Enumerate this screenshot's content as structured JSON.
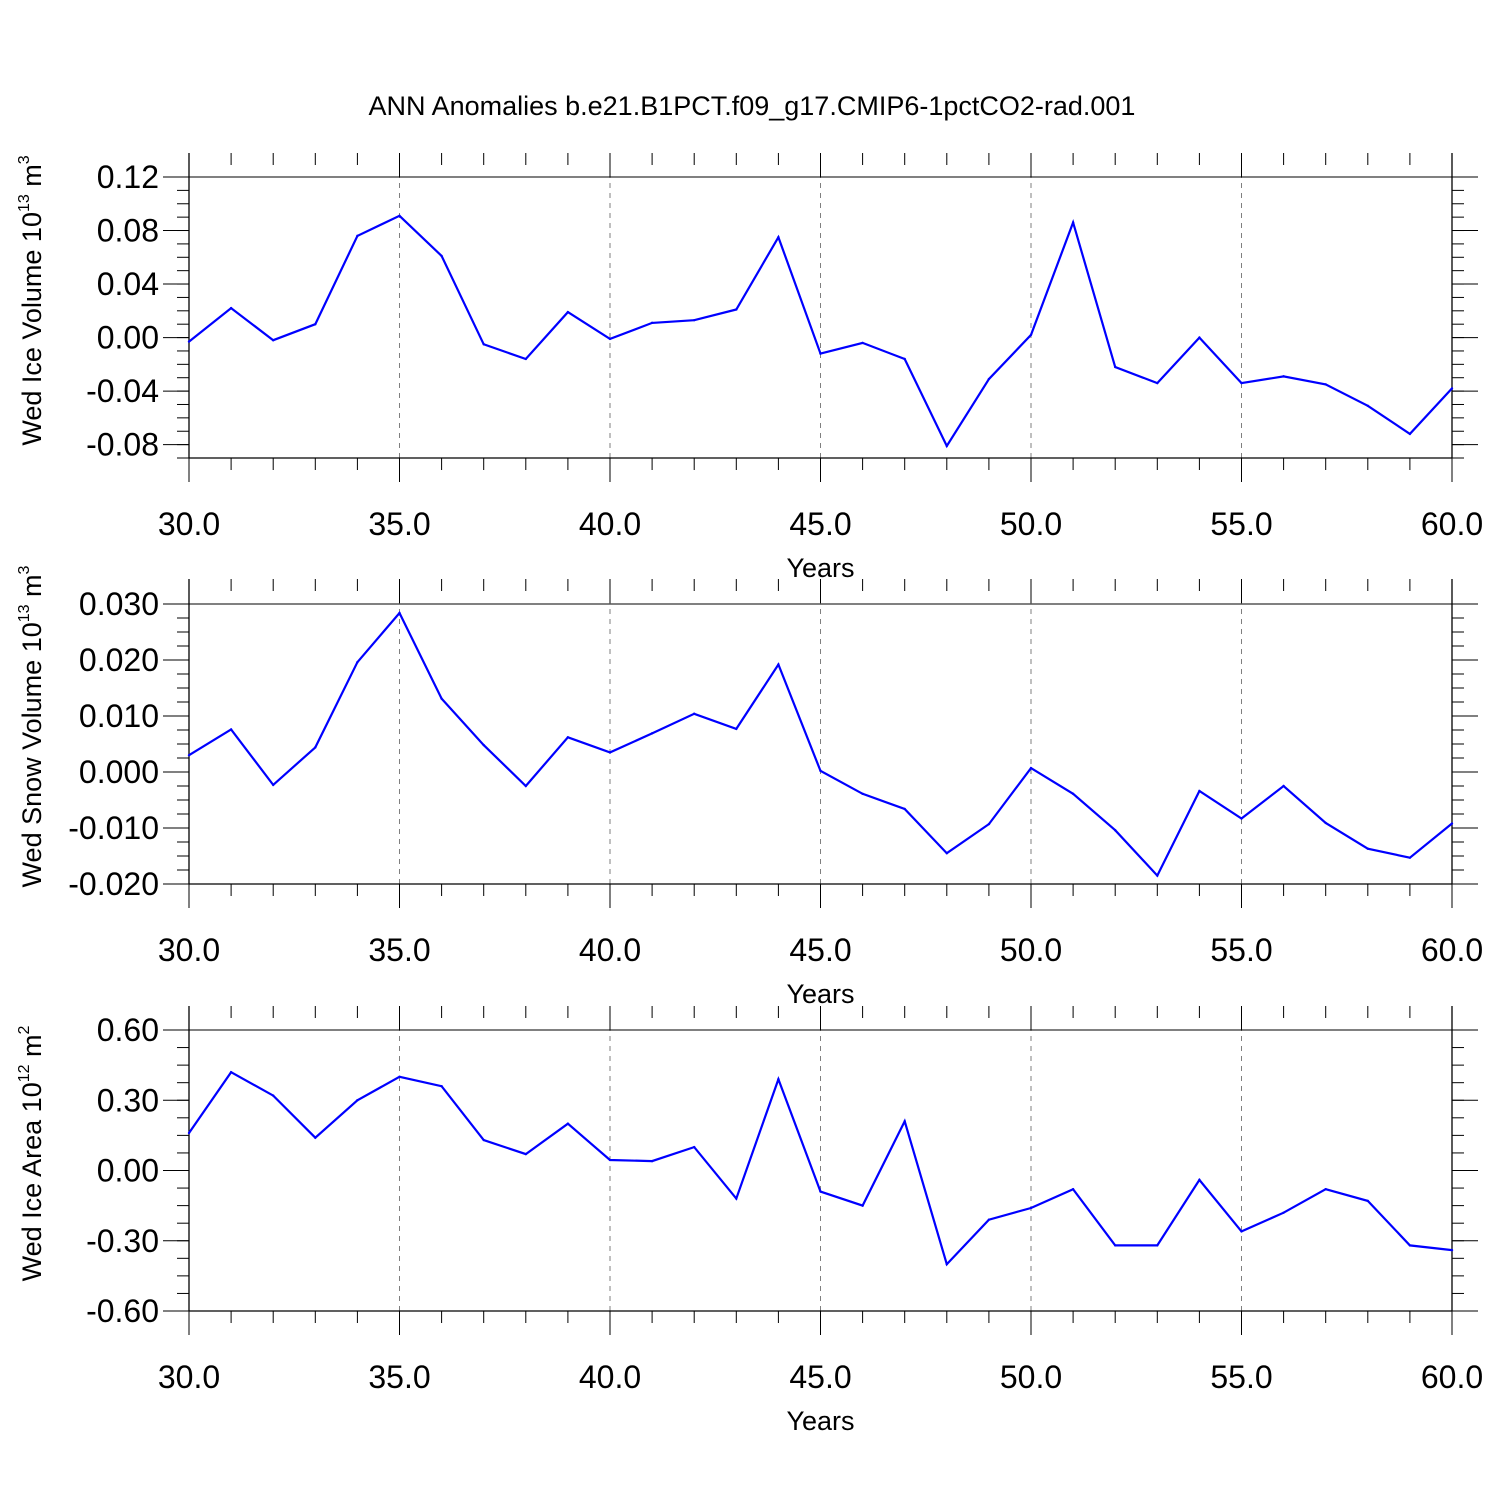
{
  "figure": {
    "title": "ANN Anomalies b.e21.B1PCT.f09_g17.CMIP6-1pctCO2-rad.001"
  },
  "colors": {
    "series": "#0000ff",
    "axes": "#000000",
    "grid": "#7f7f7f"
  },
  "chart_data": [
    {
      "type": "line",
      "ylabel": "Wed Ice Volume 10",
      "ylabel_exp": "13",
      "ylabel_unit": " m",
      "ylabel_unit_exp": "3",
      "xlabel": "Years",
      "xlim": [
        30,
        60
      ],
      "ylim": [
        -0.09,
        0.12
      ],
      "xticks": [
        30,
        35,
        40,
        45,
        50,
        55,
        60
      ],
      "xtick_labels": [
        "30.0",
        "35.0",
        "40.0",
        "45.0",
        "50.0",
        "55.0",
        "60.0"
      ],
      "yticks": [
        0.12,
        0.08,
        0.04,
        0.0,
        -0.04,
        -0.08
      ],
      "ytick_labels": [
        "0.12",
        "0.08",
        "0.04",
        "0.00",
        "-0.04",
        "-0.08"
      ],
      "x_grid": true,
      "x": [
        30,
        31,
        32,
        33,
        34,
        35,
        36,
        37,
        38,
        39,
        40,
        41,
        42,
        43,
        44,
        45,
        46,
        47,
        48,
        49,
        50,
        51,
        52,
        53,
        54,
        55,
        56,
        57,
        58,
        59,
        60
      ],
      "series": [
        {
          "values": [
            -0.003,
            0.022,
            -0.002,
            0.01,
            0.076,
            0.091,
            0.061,
            -0.005,
            -0.016,
            0.019,
            -0.001,
            0.011,
            0.013,
            0.021,
            0.075,
            -0.012,
            -0.004,
            -0.016,
            -0.081,
            -0.031,
            0.002,
            0.086,
            -0.022,
            -0.034,
            0.0,
            -0.034,
            -0.029,
            -0.035,
            -0.051,
            -0.072,
            -0.038
          ]
        }
      ]
    },
    {
      "type": "line",
      "ylabel": "Wed Snow Volume 10",
      "ylabel_exp": "13",
      "ylabel_unit": " m",
      "ylabel_unit_exp": "3",
      "xlabel": "Years",
      "xlim": [
        30,
        60
      ],
      "ylim": [
        -0.02,
        0.03
      ],
      "xticks": [
        30,
        35,
        40,
        45,
        50,
        55,
        60
      ],
      "xtick_labels": [
        "30.0",
        "35.0",
        "40.0",
        "45.0",
        "50.0",
        "55.0",
        "60.0"
      ],
      "yticks": [
        0.03,
        0.02,
        0.01,
        0.0,
        -0.01,
        -0.02
      ],
      "ytick_labels": [
        "0.030",
        "0.020",
        "0.010",
        "0.000",
        "-0.010",
        "-0.020"
      ],
      "x_grid": true,
      "x": [
        30,
        31,
        32,
        33,
        34,
        35,
        36,
        37,
        38,
        39,
        40,
        41,
        42,
        43,
        44,
        45,
        46,
        47,
        48,
        49,
        50,
        51,
        52,
        53,
        54,
        55,
        56,
        57,
        58,
        59,
        60
      ],
      "series": [
        {
          "values": [
            0.003,
            0.0076,
            -0.0023,
            0.0044,
            0.0196,
            0.0284,
            0.0131,
            0.0048,
            -0.0025,
            0.0062,
            0.0035,
            0.0069,
            0.0104,
            0.0077,
            0.0192,
            0.0002,
            -0.0039,
            -0.0066,
            -0.0145,
            -0.0093,
            0.0007,
            -0.0039,
            -0.0104,
            -0.0185,
            -0.0034,
            -0.0083,
            -0.0025,
            -0.0091,
            -0.0137,
            -0.0153,
            -0.0092
          ]
        }
      ]
    },
    {
      "type": "line",
      "ylabel": "Wed Ice Area 10",
      "ylabel_exp": "12",
      "ylabel_unit": " m",
      "ylabel_unit_exp": "2",
      "xlabel": "Years",
      "xlim": [
        30,
        60
      ],
      "ylim": [
        -0.6,
        0.6
      ],
      "xticks": [
        30,
        35,
        40,
        45,
        50,
        55,
        60
      ],
      "xtick_labels": [
        "30.0",
        "35.0",
        "40.0",
        "45.0",
        "50.0",
        "55.0",
        "60.0"
      ],
      "yticks": [
        0.6,
        0.3,
        0.0,
        -0.3,
        -0.6
      ],
      "ytick_labels": [
        "0.60",
        "0.30",
        "0.00",
        "-0.30",
        "-0.60"
      ],
      "x_grid": true,
      "x": [
        30,
        31,
        32,
        33,
        34,
        35,
        36,
        37,
        38,
        39,
        40,
        41,
        42,
        43,
        44,
        45,
        46,
        47,
        48,
        49,
        50,
        51,
        52,
        53,
        54,
        55,
        56,
        57,
        58,
        59,
        60
      ],
      "series": [
        {
          "values": [
            0.16,
            0.42,
            0.32,
            0.14,
            0.3,
            0.4,
            0.36,
            0.13,
            0.07,
            0.2,
            0.045,
            0.04,
            0.1,
            -0.12,
            0.39,
            -0.09,
            -0.15,
            0.21,
            -0.4,
            -0.21,
            -0.16,
            -0.08,
            -0.32,
            -0.32,
            -0.04,
            -0.26,
            -0.18,
            -0.08,
            -0.13,
            -0.32,
            -0.34
          ]
        }
      ]
    }
  ]
}
